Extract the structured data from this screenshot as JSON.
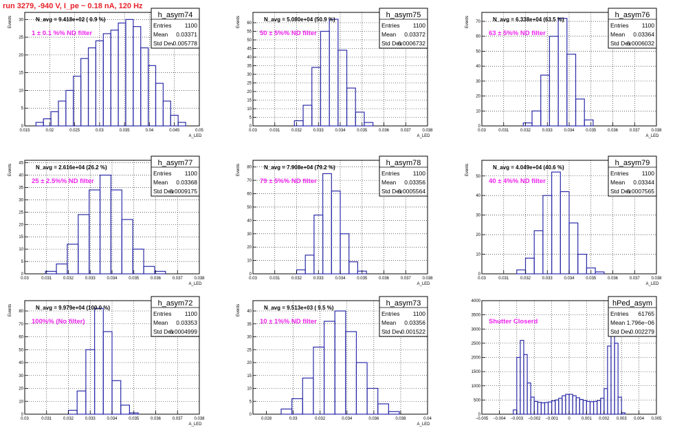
{
  "page": {
    "header": "run 3279,  -940 V, I_pe ~ 0.18 nA, 120 Hz",
    "colors": {
      "histogram": "#2b2ba8",
      "annotation": "#ee22ee",
      "header": "#e8202a",
      "axis": "#000000"
    }
  },
  "chart_data": [
    {
      "type": "bar",
      "histogram": "h_asym74",
      "nav_text": "N_avg = 9.418e+02 ( 0.9 %)",
      "annotation": "1 ± 0.1 %% ND filter",
      "stats": {
        "entries_label": "Entries",
        "entries": "1100",
        "mean_label": "Mean",
        "mean": "0.03371",
        "std_label": "Std Dev",
        "std": "0.005778"
      },
      "ylabel": "Events",
      "xlabel": "A_LED",
      "xlim": [
        0.015,
        0.05
      ],
      "ylim": [
        0,
        32
      ],
      "xticks": [
        0.015,
        0.02,
        0.025,
        0.03,
        0.035,
        0.04,
        0.045,
        0.05
      ],
      "xtick_labels": [
        "0.015",
        "0.02",
        "0.025",
        "0.03",
        "0.035",
        "0.04",
        "0.045",
        "0.05"
      ],
      "yticks": [
        0,
        5,
        10,
        15,
        20,
        25,
        30
      ],
      "yticks_labels": [
        "0",
        "5",
        "10",
        "15",
        "20",
        "25",
        "30"
      ],
      "x": [
        0.018,
        0.0195,
        0.021,
        0.0225,
        0.024,
        0.0255,
        0.027,
        0.0285,
        0.03,
        0.0315,
        0.033,
        0.0345,
        0.036,
        0.0375,
        0.039,
        0.0405,
        0.042,
        0.0435,
        0.045,
        0.0465
      ],
      "values": [
        1,
        2,
        4,
        7,
        10,
        14,
        19,
        22,
        24,
        26,
        27,
        29,
        30,
        28,
        22,
        17,
        12,
        7,
        3,
        1
      ]
    },
    {
      "type": "bar",
      "histogram": "h_asym75",
      "nav_text": "N_avg = 5.080e+04 (50.9 %)",
      "annotation": "50 ± 5%% ND filter",
      "stats": {
        "entries_label": "Entries",
        "entries": "1100",
        "mean_label": "Mean",
        "mean": "0.03372",
        "std_label": "Std Dev",
        "std": "0.0006732"
      },
      "ylabel": "Events",
      "xlabel": "A_LED",
      "xlim": [
        0.03,
        0.038
      ],
      "ylim": [
        0,
        66
      ],
      "xticks": [
        0.03,
        0.031,
        0.032,
        0.033,
        0.034,
        0.035,
        0.036,
        0.037,
        0.038
      ],
      "xtick_labels": [
        "0.03",
        "0.031",
        "0.032",
        "0.033",
        "0.034",
        "0.035",
        "0.036",
        "0.037",
        "0.038"
      ],
      "yticks": [
        0,
        5,
        10,
        15,
        20,
        25,
        30,
        35,
        40,
        45,
        50,
        55,
        60
      ],
      "yticks_labels": [
        "0",
        "5",
        "10",
        "15",
        "20",
        "25",
        "30",
        "35",
        "40",
        "45",
        "50",
        "55",
        "60"
      ],
      "x": [
        0.0321,
        0.0325,
        0.0329,
        0.0333,
        0.0337,
        0.0341,
        0.0345,
        0.0349,
        0.0353
      ],
      "values": [
        3,
        12,
        34,
        55,
        62,
        44,
        22,
        8,
        2
      ]
    },
    {
      "type": "bar",
      "histogram": "h_asym76",
      "nav_text": "N_avg = 6.338e+04 (63.5 %)",
      "annotation": "63 ± 5%% ND filter",
      "stats": {
        "entries_label": "Entries",
        "entries": "1100",
        "mean_label": "Mean",
        "mean": "0.03364",
        "std_label": "Std Dev",
        "std": "0.0006032"
      },
      "ylabel": "Events",
      "xlabel": "A_LED",
      "xlim": [
        0.03,
        0.038
      ],
      "ylim": [
        0,
        76
      ],
      "xticks": [
        0.03,
        0.031,
        0.032,
        0.033,
        0.034,
        0.035,
        0.036,
        0.037,
        0.038
      ],
      "xtick_labels": [
        "0.03",
        "0.031",
        "0.032",
        "0.033",
        "0.034",
        "0.035",
        "0.036",
        "0.037",
        "0.038"
      ],
      "yticks": [
        0,
        10,
        20,
        30,
        40,
        50,
        60,
        70
      ],
      "yticks_labels": [
        "0",
        "10",
        "20",
        "30",
        "40",
        "50",
        "60",
        "70"
      ],
      "x": [
        0.0321,
        0.0325,
        0.0329,
        0.0333,
        0.0337,
        0.0341,
        0.0345,
        0.0349
      ],
      "values": [
        2,
        10,
        34,
        60,
        72,
        48,
        18,
        4
      ]
    },
    {
      "type": "bar",
      "histogram": "h_asym77",
      "nav_text": "N_avg = 2.616e+04 (26.2 %)",
      "annotation": "25 ± 2.5%% ND filter",
      "stats": {
        "entries_label": "Entries",
        "entries": "1100",
        "mean_label": "Mean",
        "mean": "0.03368",
        "std_label": "Std Dev",
        "std": "0.0009175"
      },
      "ylabel": "Events",
      "xlabel": "A_LED",
      "xlim": [
        0.03,
        0.038
      ],
      "ylim": [
        0,
        46
      ],
      "xticks": [
        0.03,
        0.031,
        0.032,
        0.033,
        0.034,
        0.035,
        0.036,
        0.037,
        0.038
      ],
      "xtick_labels": [
        "0.03",
        "0.031",
        "0.032",
        "0.033",
        "0.034",
        "0.035",
        "0.036",
        "0.037",
        "0.038"
      ],
      "yticks": [
        0,
        5,
        10,
        15,
        20,
        25,
        30,
        35,
        40,
        45
      ],
      "yticks_labels": [
        "0",
        "5",
        "10",
        "15",
        "20",
        "25",
        "30",
        "35",
        "40",
        "45"
      ],
      "x": [
        0.0312,
        0.0317,
        0.0322,
        0.0327,
        0.0332,
        0.0337,
        0.0342,
        0.0347,
        0.0352,
        0.0357,
        0.0362
      ],
      "values": [
        1,
        4,
        12,
        24,
        34,
        40,
        34,
        22,
        10,
        3,
        1
      ]
    },
    {
      "type": "bar",
      "histogram": "h_asym78",
      "nav_text": "N_avg = 7.908e+04 (79.2 %)",
      "annotation": "79 ± 5%% ND filter",
      "stats": {
        "entries_label": "Entries",
        "entries": "1100",
        "mean_label": "Mean",
        "mean": "0.03356",
        "std_label": "Std Dev",
        "std": "0.0005564"
      },
      "ylabel": "Events",
      "xlabel": "A_LED",
      "xlim": [
        0.03,
        0.038
      ],
      "ylim": [
        0,
        85
      ],
      "xticks": [
        0.03,
        0.031,
        0.032,
        0.033,
        0.034,
        0.035,
        0.036,
        0.037,
        0.038
      ],
      "xtick_labels": [
        "0.03",
        "0.031",
        "0.032",
        "0.033",
        "0.034",
        "0.035",
        "0.036",
        "0.037",
        "0.038"
      ],
      "yticks": [
        0,
        10,
        20,
        30,
        40,
        50,
        60,
        70,
        80
      ],
      "yticks_labels": [
        "0",
        "10",
        "20",
        "30",
        "40",
        "50",
        "60",
        "70",
        "80"
      ],
      "x": [
        0.0322,
        0.0326,
        0.033,
        0.0334,
        0.0338,
        0.0342,
        0.0346,
        0.035
      ],
      "values": [
        3,
        14,
        44,
        75,
        62,
        30,
        9,
        2
      ]
    },
    {
      "type": "bar",
      "histogram": "h_asym79",
      "nav_text": "N_avg = 4.049e+04 (40.6 %)",
      "annotation": "40 ± 4%% ND filter",
      "stats": {
        "entries_label": "Entries",
        "entries": "1100",
        "mean_label": "Mean",
        "mean": "0.03344",
        "std_label": "Std Dev",
        "std": "0.0007565"
      },
      "ylabel": "Events",
      "xlabel": "A_LED",
      "xlim": [
        0.03,
        0.038
      ],
      "ylim": [
        0,
        58
      ],
      "xticks": [
        0.03,
        0.031,
        0.032,
        0.033,
        0.034,
        0.035,
        0.036,
        0.037,
        0.038
      ],
      "xtick_labels": [
        "0.03",
        "0.031",
        "0.032",
        "0.033",
        "0.034",
        "0.035",
        "0.036",
        "0.037",
        "0.038"
      ],
      "yticks": [
        0,
        10,
        20,
        30,
        40,
        50
      ],
      "yticks_labels": [
        "0",
        "10",
        "20",
        "30",
        "40",
        "50"
      ],
      "x": [
        0.0318,
        0.0322,
        0.0326,
        0.033,
        0.0334,
        0.0338,
        0.0342,
        0.0346,
        0.035,
        0.0354
      ],
      "values": [
        2,
        8,
        22,
        40,
        52,
        42,
        26,
        10,
        3,
        1
      ]
    },
    {
      "type": "bar",
      "histogram": "h_asym72",
      "nav_text": "N_avg = 9.979e+04 (100.0 %)",
      "annotation": "100%% (No filter)",
      "stats": {
        "entries_label": "Entries",
        "entries": "1100",
        "mean_label": "Mean",
        "mean": "0.03353",
        "std_label": "Std Dev",
        "std": "0.0004999"
      },
      "ylabel": "Events",
      "xlabel": "A_LED",
      "xlim": [
        0.03,
        0.038
      ],
      "ylim": [
        0,
        88
      ],
      "xticks": [
        0.03,
        0.031,
        0.032,
        0.033,
        0.034,
        0.035,
        0.036,
        0.037,
        0.038
      ],
      "xtick_labels": [
        "0.03",
        "0.031",
        "0.032",
        "0.033",
        "0.034",
        "0.035",
        "0.036",
        "0.037",
        "0.038"
      ],
      "yticks": [
        0,
        10,
        20,
        30,
        40,
        50,
        60,
        70,
        80
      ],
      "yticks_labels": [
        "0",
        "10",
        "20",
        "30",
        "40",
        "50",
        "60",
        "70",
        "80"
      ],
      "x": [
        0.0322,
        0.0326,
        0.033,
        0.0334,
        0.0338,
        0.0342,
        0.0346,
        0.035
      ],
      "values": [
        3,
        18,
        50,
        82,
        64,
        26,
        7,
        1
      ]
    },
    {
      "type": "bar",
      "histogram": "h_asym73",
      "nav_text": "N_avg = 9.513e+03 ( 9.5 %)",
      "annotation": "10 ± 1%% ND filter",
      "stats": {
        "entries_label": "Entries",
        "entries": "1100",
        "mean_label": "Mean",
        "mean": "0.03356",
        "std_label": "Std Dev",
        "std": "0.001522"
      },
      "ylabel": "Events",
      "xlabel": "A_LED",
      "xlim": [
        0.027,
        0.04
      ],
      "ylim": [
        0,
        44
      ],
      "xticks": [
        0.028,
        0.03,
        0.032,
        0.034,
        0.036,
        0.038,
        0.04
      ],
      "xtick_labels": [
        "0.028",
        "0.03",
        "0.032",
        "0.034",
        "0.036",
        "0.038",
        "0.04"
      ],
      "yticks": [
        0,
        5,
        10,
        15,
        20,
        25,
        30,
        35,
        40
      ],
      "yticks_labels": [
        "0",
        "5",
        "10",
        "15",
        "20",
        "25",
        "30",
        "35",
        "40"
      ],
      "x": [
        0.0295,
        0.0303,
        0.0311,
        0.0319,
        0.0327,
        0.0335,
        0.0343,
        0.0351,
        0.0359,
        0.0367,
        0.0375
      ],
      "values": [
        2,
        6,
        14,
        26,
        36,
        40,
        32,
        20,
        10,
        4,
        1
      ]
    },
    {
      "type": "bar",
      "histogram": "hPed_asym",
      "nav_text": "",
      "annotation": "Shutter Closerd",
      "stats": {
        "entries_label": "Entries",
        "entries": "61765",
        "mean_label": "Mean",
        "mean": "1.796e−06",
        "std_label": "Std Dev",
        "std": "0.002279"
      },
      "ylabel": "",
      "xlabel": "",
      "xlim": [
        -0.005,
        0.005
      ],
      "ylim": [
        0,
        4000
      ],
      "xticks": [
        -0.005,
        -0.004,
        -0.003,
        -0.002,
        -0.001,
        0,
        0.001,
        0.002,
        0.003,
        0.004,
        0.005
      ],
      "xtick_labels": [
        "−0.005",
        "−0.004",
        "−0.003",
        "−0.002",
        "−0.001",
        "0",
        "0.001",
        "0.002",
        "0.003",
        "0.004",
        "0.005"
      ],
      "yticks": [
        0,
        500,
        1000,
        1500,
        2000,
        2500,
        3000,
        3500,
        4000
      ],
      "yticks_labels": [
        "0",
        "500",
        "1000",
        "1500",
        "2000",
        "2500",
        "3000",
        "3500",
        "4000"
      ],
      "x": [
        -0.0031,
        -0.0029,
        -0.0027,
        -0.0025,
        -0.0023,
        -0.0021,
        -0.0019,
        -0.0017,
        -0.0015,
        -0.0013,
        -0.0011,
        -0.0009,
        -0.0007,
        -0.0005,
        -0.0003,
        -0.0001,
        0.0001,
        0.0003,
        0.0005,
        0.0007,
        0.0009,
        0.0011,
        0.0013,
        0.0015,
        0.0017,
        0.0019,
        0.0021,
        0.0023,
        0.0025,
        0.0027,
        0.0029,
        0.0031
      ],
      "values": [
        150,
        2000,
        2600,
        2100,
        1100,
        600,
        450,
        420,
        400,
        410,
        430,
        470,
        500,
        560,
        650,
        700,
        700,
        650,
        580,
        520,
        480,
        450,
        440,
        450,
        480,
        560,
        900,
        2400,
        3800,
        2500,
        600,
        50
      ]
    }
  ]
}
